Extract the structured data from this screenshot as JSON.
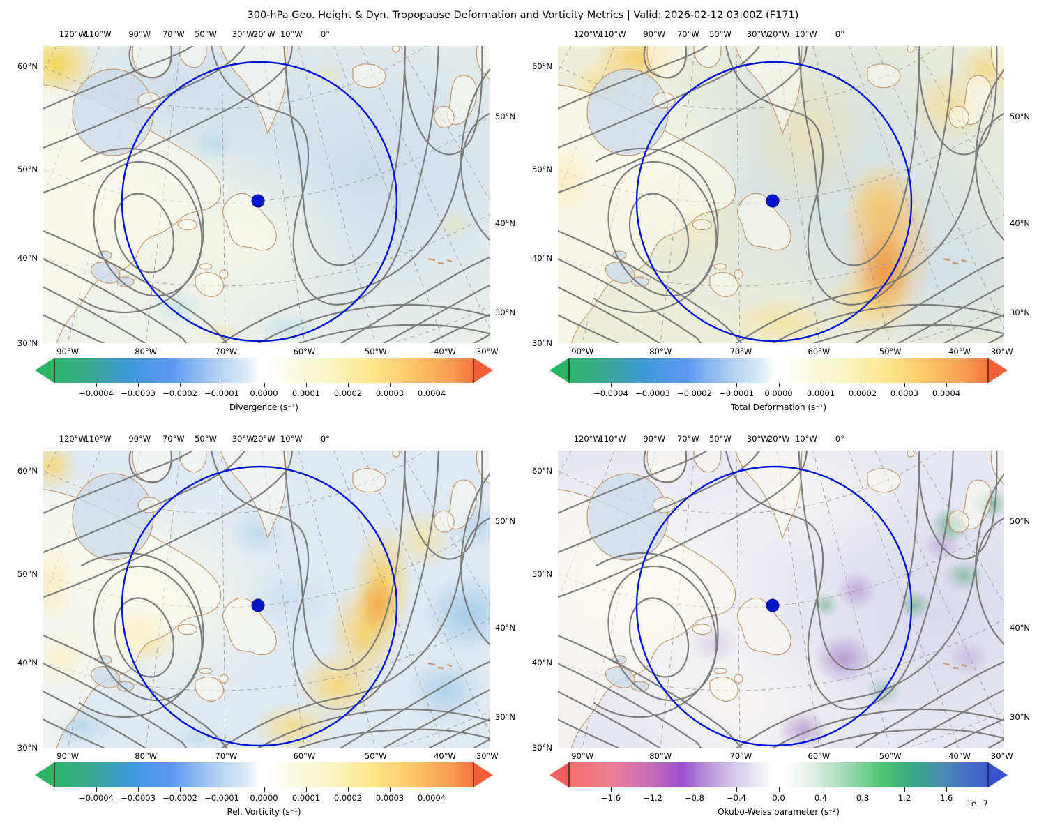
{
  "title": "300-hPa Geo. Height & Dyn. Tropopause Deformation and Vorticity Metrics |  Valid: 2026-02-12 03:00Z (F171)",
  "geo_axis": {
    "top": [
      "120°W",
      "110°W",
      "90°W",
      "70°W",
      "50°W",
      "30°W",
      "20°W",
      "10°W",
      "0°"
    ],
    "bottom": [
      "90°W",
      "80°W",
      "70°W",
      "60°W",
      "50°W",
      "40°W",
      "30°W"
    ],
    "left": [
      "60°N",
      "50°N",
      "40°N",
      "30°N"
    ],
    "right": [
      "50°N",
      "40°N",
      "30°N"
    ]
  },
  "panels": [
    {
      "key": "divergence",
      "label": "Divergence (s⁻¹)",
      "ticks": [
        "−0.0004",
        "−0.0003",
        "−0.0002",
        "−0.0001",
        "0.0000",
        "0.0001",
        "0.0002",
        "0.0003",
        "0.0004"
      ],
      "cmap": "green-blue-white-yellow-orange",
      "offset": ""
    },
    {
      "key": "deformation",
      "label": "Total Deformation (s⁻¹)",
      "ticks": [
        "−0.0004",
        "−0.0003",
        "−0.0002",
        "−0.0001",
        "0.0000",
        "0.0001",
        "0.0002",
        "0.0003",
        "0.0004"
      ],
      "cmap": "green-blue-white-yellow-orange",
      "offset": ""
    },
    {
      "key": "vorticity",
      "label": "Rel. Vorticity (s⁻¹)",
      "ticks": [
        "−0.0004",
        "−0.0003",
        "−0.0002",
        "−0.0001",
        "0.0000",
        "0.0001",
        "0.0002",
        "0.0003",
        "0.0004"
      ],
      "cmap": "green-blue-white-yellow-orange",
      "offset": ""
    },
    {
      "key": "okubo",
      "label": "Okubo-Weiss parameter (s⁻²)",
      "ticks": [
        "−1.6",
        "−1.2",
        "−0.8",
        "−0.4",
        "0.0",
        "0.4",
        "0.8",
        "1.2",
        "1.6"
      ],
      "cmap": "red-purple-white-green-blue",
      "offset": "1e−7"
    }
  ],
  "map_style": {
    "contour_color": "#757575",
    "coast_color": "#c49a72",
    "graticule_color": "#9a9a9a",
    "ring_color": "#0016d9",
    "marker_color": "#0014cc",
    "land_fill": "rgba(254,251,240,0.55)",
    "water_fill": "rgba(205,219,233,0.8)"
  },
  "chart_data": {
    "type": "heatmap",
    "layout": "2x2 grid of filled-contour maps with shared geographic extent",
    "suptitle": "300-hPa Geo. Height & Dyn. Tropopause Deformation and Vorticity Metrics |  Valid: 2026-02-12 03:00Z (F171)",
    "shared": {
      "overlay_contours": "300-hPa geopotential height (gray solid lines)",
      "graticule": "dashed gray lat/lon grid",
      "lat_labels": [
        "30°N",
        "40°N",
        "50°N",
        "60°N"
      ],
      "lon_labels_top": [
        "120°W",
        "110°W",
        "90°W",
        "70°W",
        "50°W",
        "30°W",
        "20°W",
        "10°W",
        "0°"
      ],
      "lon_labels_bottom": [
        "90°W",
        "80°W",
        "70°W",
        "60°W",
        "50°W",
        "40°W",
        "30°W"
      ],
      "marker": {
        "approx_lat": "50°N",
        "approx_lon": "62°W",
        "style": "filled blue dot"
      },
      "range_ring": "large blue circle centered on marker spanning ~30°N–60°N"
    },
    "panels": [
      {
        "position": "top-left",
        "field": "Divergence",
        "units": "s⁻¹",
        "colorbar_ticks": [
          -0.0004,
          -0.0003,
          -0.0002,
          -0.0001,
          0.0,
          0.0001,
          0.0002,
          0.0003,
          0.0004
        ],
        "colorbar_range": [
          -0.0005,
          0.0005
        ],
        "extend": "both",
        "pattern": "near-zero field; pale blue Atlantic, weak cyan/yellow speckles, yellow streak NW corner"
      },
      {
        "position": "top-right",
        "field": "Total Deformation",
        "units": "s⁻¹",
        "colorbar_ticks": [
          -0.0004,
          -0.0003,
          -0.0002,
          -0.0001,
          0.0,
          0.0001,
          0.0002,
          0.0003,
          0.0004
        ],
        "colorbar_range": [
          -0.0005,
          0.0005
        ],
        "extend": "both",
        "pattern": "positive (yellow-orange) bands along jet southeast of Newfoundland and scattered maxima NW"
      },
      {
        "position": "bottom-left",
        "field": "Rel. Vorticity",
        "units": "s⁻¹",
        "colorbar_ticks": [
          -0.0004,
          -0.0003,
          -0.0002,
          -0.0001,
          0.0,
          0.0001,
          0.0002,
          0.0003,
          0.0004
        ],
        "colorbar_range": [
          -0.0005,
          0.0005
        ],
        "extend": "both",
        "pattern": "cyclonic (yellow-orange) arc along trough east of Newfoundland; anticyclonic (blue) patches east"
      },
      {
        "position": "bottom-right",
        "field": "Okubo-Weiss parameter",
        "units": "s⁻²",
        "colorbar_ticks": [
          -1.6e-07,
          -1.2e-07,
          -8e-08,
          -4e-08,
          0.0,
          4e-08,
          8e-08,
          1.2e-07,
          1.6e-07
        ],
        "colorbar_tick_labels": [
          -1.6,
          -1.2,
          -0.8,
          -0.4,
          0.0,
          0.4,
          0.8,
          1.2,
          1.6
        ],
        "scale_factor": "1e−7",
        "colorbar_range": [
          -2e-07,
          2e-07
        ],
        "extend": "both",
        "pattern": "mostly near zero (pale lavender/white); purple vorticity-dominated and green strain-dominated spots along SE jet"
      }
    ]
  }
}
